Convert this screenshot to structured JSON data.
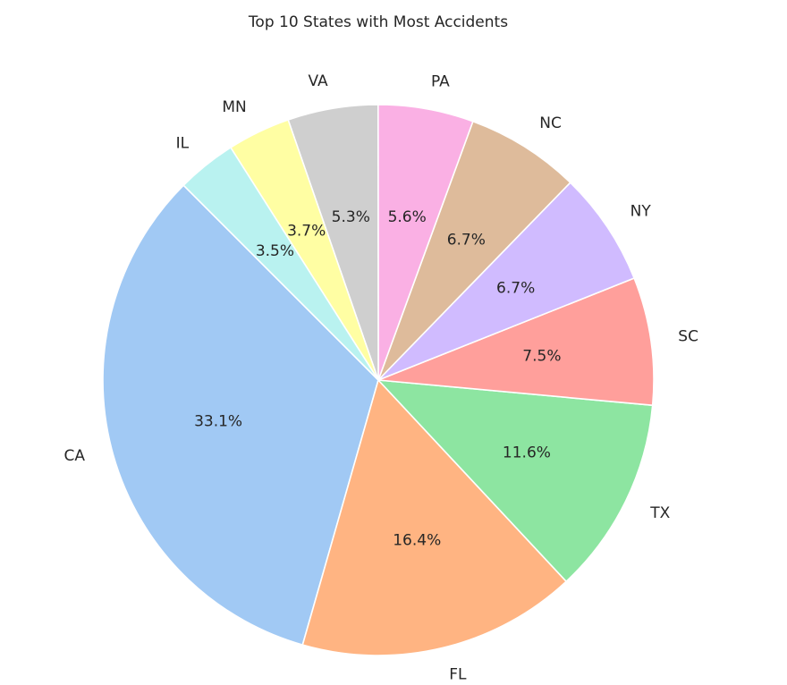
{
  "chart_data": {
    "type": "pie",
    "title": "Top 10 States with Most Accidents",
    "categories": [
      "CA",
      "FL",
      "TX",
      "SC",
      "NY",
      "NC",
      "PA",
      "VA",
      "MN",
      "IL"
    ],
    "values": [
      33.1,
      16.4,
      11.6,
      7.5,
      6.7,
      6.7,
      5.6,
      5.3,
      3.7,
      3.5
    ],
    "percent_labels": [
      "33.1%",
      "16.4%",
      "11.6%",
      "7.5%",
      "6.7%",
      "6.7%",
      "5.6%",
      "5.3%",
      "3.7%",
      "3.5%"
    ],
    "colors": [
      "#a1c9f4",
      "#ffb482",
      "#8de5a1",
      "#ff9f9b",
      "#d0bbff",
      "#debb9b",
      "#fab0e4",
      "#cfcfcf",
      "#fffea3",
      "#b9f2f0"
    ],
    "start_angle_deg": 135,
    "direction": "counterclockwise",
    "legend": "none"
  }
}
